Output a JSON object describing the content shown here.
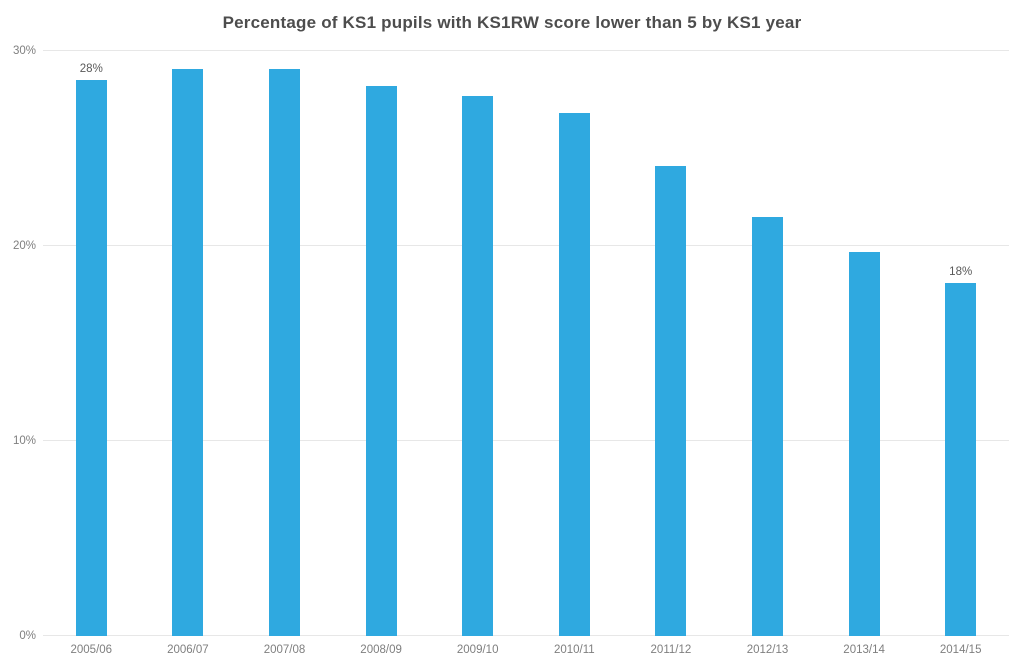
{
  "chart_data": {
    "type": "bar",
    "title": "Percentage of KS1 pupils with KS1RW score lower than 5 by KS1 year",
    "categories": [
      "2005/06",
      "2006/07",
      "2007/08",
      "2008/09",
      "2009/10",
      "2010/11",
      "2011/12",
      "2012/13",
      "2013/14",
      "2014/15"
    ],
    "values": [
      28.5,
      29.1,
      29.1,
      28.2,
      27.7,
      26.8,
      24.1,
      21.5,
      19.7,
      18.1
    ],
    "data_labels": [
      {
        "index": 0,
        "text": "28%"
      },
      {
        "index": 9,
        "text": "18%"
      }
    ],
    "xlabel": "",
    "ylabel": "",
    "y_ticks": [
      {
        "value": 0,
        "label": "0%"
      },
      {
        "value": 10,
        "label": "10%"
      },
      {
        "value": 20,
        "label": "20%"
      },
      {
        "value": 30,
        "label": "30%"
      }
    ],
    "ylim": [
      0,
      30
    ],
    "grid": true,
    "legend": "none",
    "bar_color": "#2FA9E0",
    "gridline_color": "#E7E7E7",
    "title_color": "#4D4D4D",
    "axis_text_color": "#7F7F7F",
    "data_label_color": "#595959",
    "background_color": "#FFFFFF"
  }
}
